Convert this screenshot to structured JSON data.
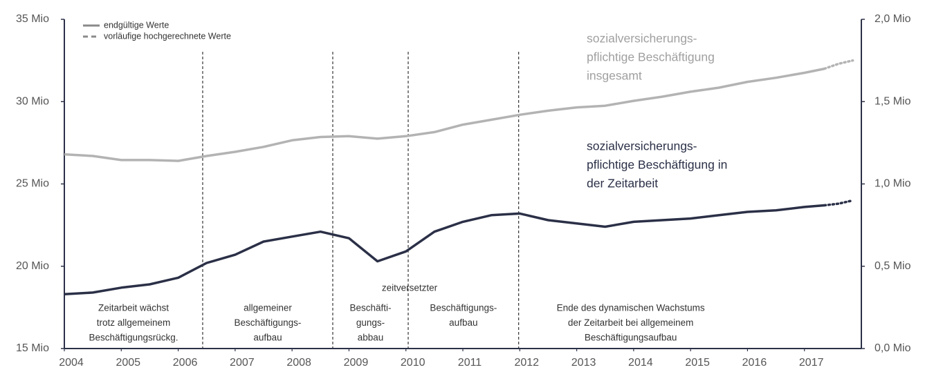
{
  "chart_data": {
    "type": "line",
    "xlim": [
      2004,
      2018
    ],
    "xticks": [
      2004,
      2005,
      2006,
      2007,
      2008,
      2009,
      2010,
      2011,
      2012,
      2013,
      2014,
      2015,
      2016,
      2017
    ],
    "ylim": [
      15,
      35
    ],
    "yticks": [
      {
        "value": 15,
        "label": "15 Mio"
      },
      {
        "value": 20,
        "label": "20 Mio"
      },
      {
        "value": 25,
        "label": "25 Mio"
      },
      {
        "value": 30,
        "label": "30 Mio"
      },
      {
        "value": 35,
        "label": "35 Mio"
      }
    ],
    "y2lim": [
      0,
      2
    ],
    "y2ticks": [
      {
        "value": 0,
        "label": "0,0 Mio"
      },
      {
        "value": 0.5,
        "label": "0,5 Mio"
      },
      {
        "value": 1,
        "label": "1,0 Mio"
      },
      {
        "value": 1.5,
        "label": "1,5 Mio"
      },
      {
        "value": 2,
        "label": "2,0 Mio"
      }
    ],
    "legend": [
      {
        "label": "endgültige Werte",
        "style": "solid"
      },
      {
        "label": "vorläufige hochgerechnete Werte",
        "style": "dashed"
      }
    ],
    "series": [
      {
        "name_lines": [
          "sozialversicherungs-",
          "pflichtige Beschäftigung",
          "insgesamt"
        ],
        "color": "#b3b3b3",
        "axis": "y",
        "x": [
          2004,
          2004.5,
          2005,
          2005.5,
          2006,
          2006.5,
          2007,
          2007.5,
          2008,
          2008.5,
          2009,
          2009.5,
          2010,
          2010.5,
          2011,
          2011.5,
          2012,
          2012.5,
          2013,
          2013.5,
          2014,
          2014.5,
          2015,
          2015.5,
          2016,
          2016.5,
          2017,
          2017.35
        ],
        "values": [
          26.8,
          26.7,
          26.45,
          26.45,
          26.4,
          26.7,
          26.95,
          27.25,
          27.65,
          27.85,
          27.9,
          27.75,
          27.9,
          28.15,
          28.6,
          28.9,
          29.2,
          29.45,
          29.65,
          29.75,
          30.05,
          30.3,
          30.6,
          30.85,
          31.2,
          31.45,
          31.75,
          32.0
        ],
        "provisional_x": [
          2017.35,
          2017.6,
          2017.85
        ],
        "provisional_values": [
          32.0,
          32.3,
          32.5
        ]
      },
      {
        "name_lines": [
          "sozialversicherungs-",
          "pflichtige Beschäftigung in",
          "der Zeitarbeit"
        ],
        "color": "#2b3047",
        "axis": "y2",
        "x": [
          2004,
          2004.5,
          2005,
          2005.5,
          2006,
          2006.5,
          2007,
          2007.5,
          2008,
          2008.5,
          2009,
          2009.5,
          2010,
          2010.5,
          2011,
          2011.5,
          2012,
          2012.5,
          2013,
          2013.5,
          2014,
          2014.5,
          2015,
          2015.5,
          2016,
          2016.5,
          2017,
          2017.35
        ],
        "values": [
          0.33,
          0.34,
          0.37,
          0.39,
          0.43,
          0.52,
          0.57,
          0.65,
          0.68,
          0.71,
          0.67,
          0.53,
          0.59,
          0.71,
          0.77,
          0.81,
          0.82,
          0.78,
          0.76,
          0.74,
          0.77,
          0.78,
          0.79,
          0.81,
          0.83,
          0.84,
          0.86,
          0.87
        ],
        "provisional_x": [
          2017.35,
          2017.6,
          2017.85
        ],
        "provisional_values": [
          0.87,
          0.88,
          0.9
        ]
      }
    ],
    "phase_boundaries": [
      2006.43,
      2008.715,
      2010.04,
      2011.98
    ],
    "phases": [
      {
        "lines": [
          "Zeitarbeit wächst",
          "trotz allgemeinem",
          "Beschäftigungsrückg."
        ]
      },
      {
        "lines": [
          "allgemeiner",
          "Beschäftigungs-",
          "aufbau"
        ]
      },
      {
        "lines": [
          "Beschäfti-",
          "gungs-",
          "abbau"
        ]
      },
      {
        "lines": [
          "Beschäftigungs-",
          "aufbau"
        ]
      },
      {
        "lines": [
          "Ende des dynamischen Wachstums",
          "der Zeitarbeit bei allgemeinem",
          "Beschäftigungsaufbau"
        ]
      }
    ],
    "phase_note": "zeitversetzter"
  }
}
